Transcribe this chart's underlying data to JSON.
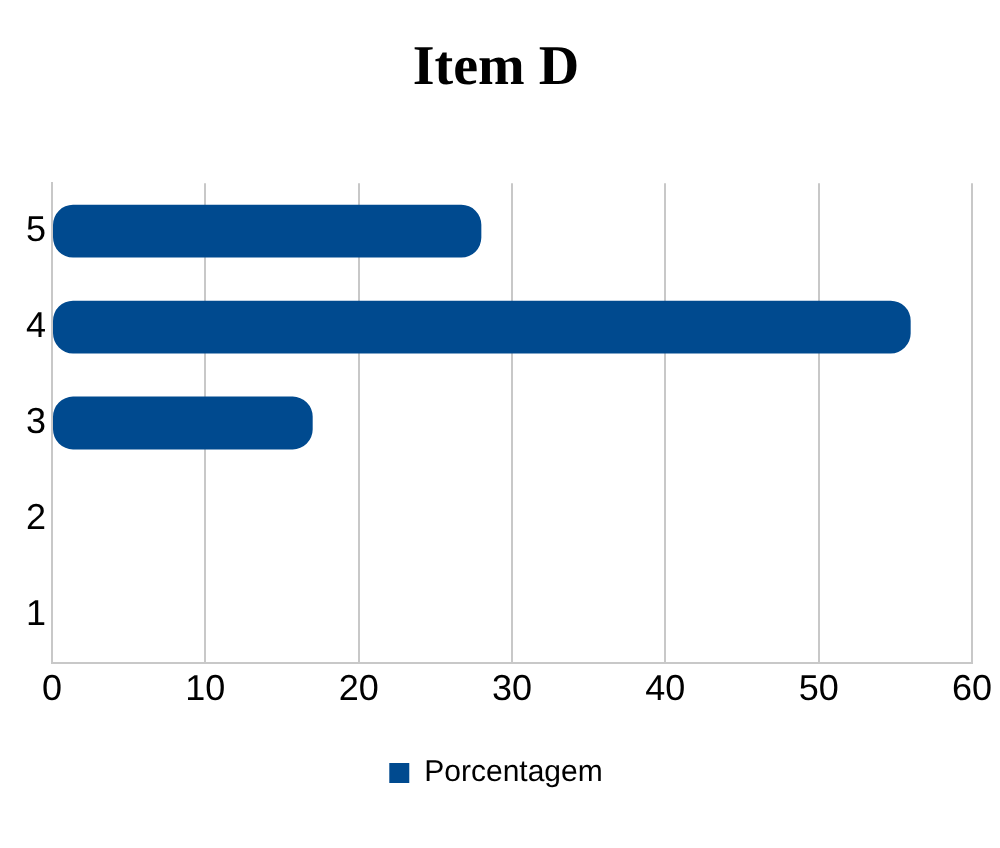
{
  "chart_data": {
    "type": "bar",
    "orientation": "horizontal",
    "title": "Item D",
    "categories": [
      "5",
      "4",
      "3",
      "2",
      "1"
    ],
    "series": [
      {
        "name": "Porcentagem",
        "color": "#004a8f",
        "values": [
          28,
          56,
          17,
          0,
          0
        ]
      }
    ],
    "xlim": [
      0,
      60
    ],
    "xticks": [
      0,
      10,
      20,
      30,
      40,
      50,
      60
    ],
    "grid": "x",
    "legend": "bottom"
  }
}
